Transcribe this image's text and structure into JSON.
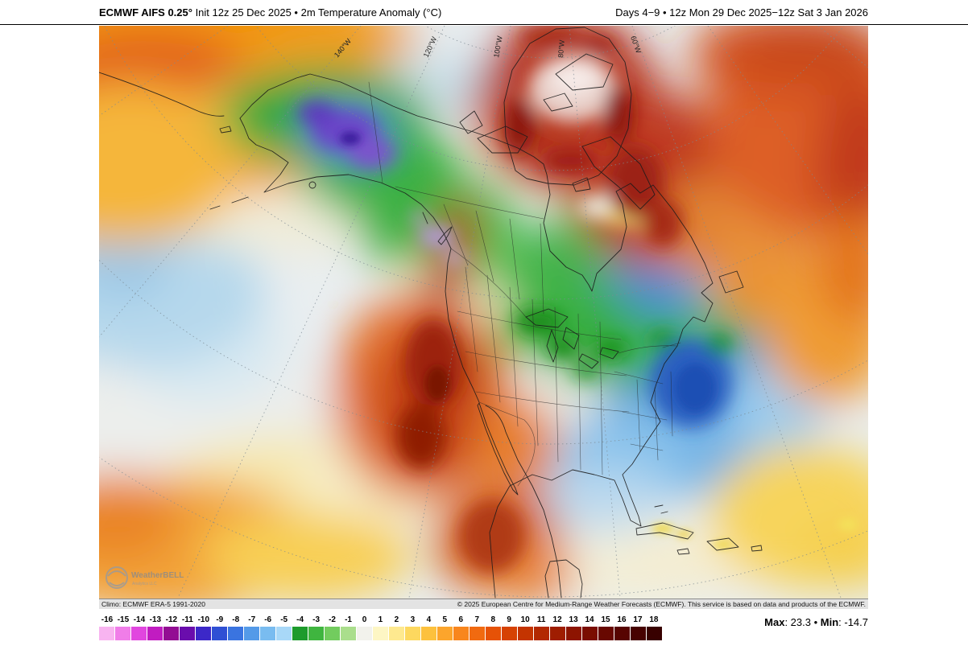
{
  "header": {
    "left_model": "ECMWF AIFS 0.25°",
    "left_info": " Init 12z 25 Dec 2025 • 2m Temperature Anomaly (°C)",
    "right": "Days 4−9 • 12z Mon 29 Dec 2025−12z Sat 3 Jan 2026"
  },
  "map": {
    "meridian_labels": [
      "140°W",
      "120°W",
      "100°W",
      "80°W",
      "60°W"
    ],
    "watermark_name": "WeatherBELL",
    "watermark_sub": "Analytics LLC"
  },
  "attribution": {
    "climo": "Climo: ECMWF ERA-5 1991-2020",
    "copyright": "© 2025 European Centre for Medium-Range Weather Forecasts (ECMWF). This service is based on data and products of the ECMWF."
  },
  "colorbar": {
    "tick_labels": [
      "-16",
      "-15",
      "-14",
      "-13",
      "-12",
      "-11",
      "-10",
      "-9",
      "-8",
      "-7",
      "-6",
      "-5",
      "-4",
      "-3",
      "-2",
      "-1",
      "0",
      "1",
      "2",
      "3",
      "4",
      "5",
      "6",
      "7",
      "8",
      "9",
      "10",
      "11",
      "12",
      "13",
      "14",
      "15",
      "16",
      "17",
      "18"
    ],
    "colors": [
      "#f8b4f0",
      "#f07de8",
      "#e146df",
      "#c11cc1",
      "#930d93",
      "#6a0dad",
      "#3c28c8",
      "#2f50d4",
      "#3a74e0",
      "#549ae8",
      "#79bcf0",
      "#a8d8f8",
      "#1d9b2c",
      "#3fb53f",
      "#72cc5e",
      "#aade8c",
      "#f2f2ec",
      "#fdf6c4",
      "#fee98f",
      "#fdd85f",
      "#fdc13d",
      "#fca52c",
      "#f8861d",
      "#f16a10",
      "#e65207",
      "#d64203",
      "#c43401",
      "#b22801",
      "#9f1d01",
      "#8d1401",
      "#7a0d01",
      "#680801",
      "#570401",
      "#470201",
      "#380100"
    ]
  },
  "stats": {
    "max_label": "Max",
    "max_text": ": 23.3",
    "separator": " • ",
    "min_label": "Min",
    "min_text": ": -14.7"
  }
}
